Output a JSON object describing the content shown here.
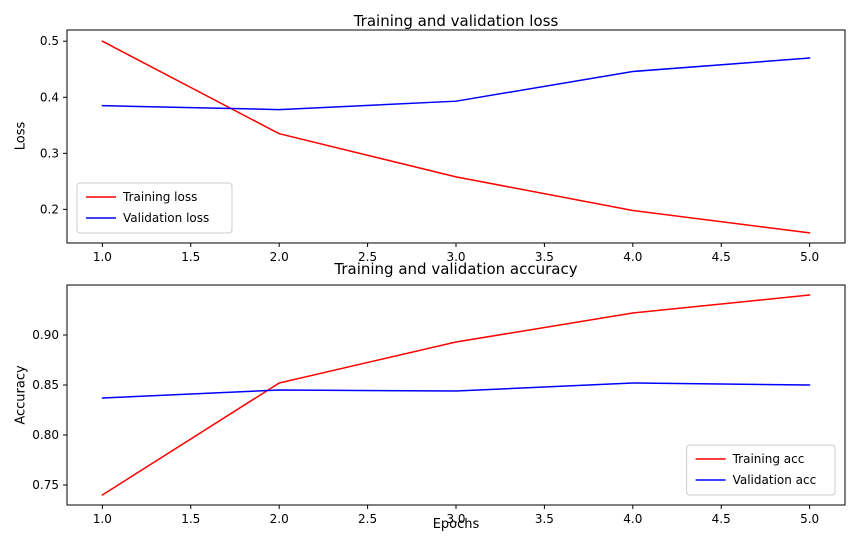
{
  "figure": {
    "background": "#ffffff",
    "frame_color": "#000000",
    "legend_border_color": "#cccccc"
  },
  "chart_data": [
    {
      "type": "line",
      "title": "Training and validation loss",
      "xlabel": "",
      "ylabel": "Loss",
      "x": [
        1,
        2,
        3,
        4,
        5
      ],
      "series": [
        {
          "name": "Training loss",
          "color": "#ff0000",
          "values": [
            0.5,
            0.335,
            0.258,
            0.198,
            0.158
          ]
        },
        {
          "name": "Validation loss",
          "color": "#0000ff",
          "values": [
            0.385,
            0.378,
            0.393,
            0.446,
            0.47
          ]
        }
      ],
      "xlim": [
        0.8,
        5.2
      ],
      "ylim": [
        0.14,
        0.52
      ],
      "xticks": {
        "values": [
          1,
          1.5,
          2,
          2.5,
          3,
          3.5,
          4,
          4.5,
          5
        ],
        "labels": [
          "1.0",
          "1.5",
          "2.0",
          "2.5",
          "3.0",
          "3.5",
          "4.0",
          "4.5",
          "5.0"
        ]
      },
      "yticks": {
        "values": [
          0.2,
          0.3,
          0.4,
          0.5
        ],
        "labels": [
          "0.2",
          "0.3",
          "0.4",
          "0.5"
        ]
      },
      "grid": false,
      "legend": {
        "position": "lower-left",
        "entries": [
          "Training loss",
          "Validation loss"
        ]
      }
    },
    {
      "type": "line",
      "title": "Training and validation accuracy",
      "xlabel": "Epochs",
      "ylabel": "Accuracy",
      "x": [
        1,
        2,
        3,
        4,
        5
      ],
      "series": [
        {
          "name": "Training acc",
          "color": "#ff0000",
          "values": [
            0.74,
            0.852,
            0.893,
            0.922,
            0.94
          ]
        },
        {
          "name": "Validation acc",
          "color": "#0000ff",
          "values": [
            0.837,
            0.845,
            0.844,
            0.852,
            0.85
          ]
        }
      ],
      "xlim": [
        0.8,
        5.2
      ],
      "ylim": [
        0.73,
        0.95
      ],
      "xticks": {
        "values": [
          1,
          1.5,
          2,
          2.5,
          3,
          3.5,
          4,
          4.5,
          5
        ],
        "labels": [
          "1.0",
          "1.5",
          "2.0",
          "2.5",
          "3.0",
          "3.5",
          "4.0",
          "4.5",
          "5.0"
        ]
      },
      "yticks": {
        "values": [
          0.75,
          0.8,
          0.85,
          0.9
        ],
        "labels": [
          "0.75",
          "0.80",
          "0.85",
          "0.90"
        ]
      },
      "grid": false,
      "legend": {
        "position": "lower-right",
        "entries": [
          "Training acc",
          "Validation acc"
        ]
      }
    }
  ]
}
